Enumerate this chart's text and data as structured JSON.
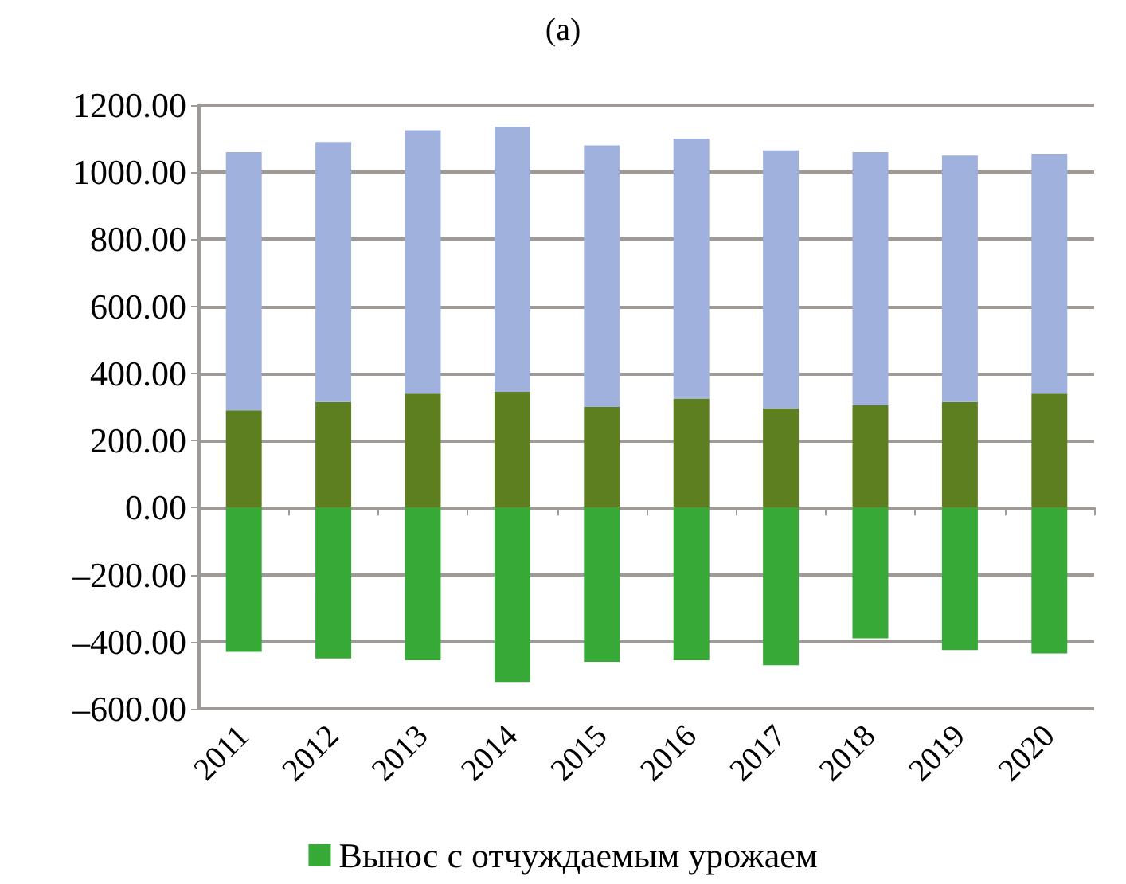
{
  "chart_data": {
    "type": "bar",
    "title": "(a)",
    "stacked": true,
    "categories": [
      "2011",
      "2012",
      "2013",
      "2014",
      "2015",
      "2016",
      "2017",
      "2018",
      "2019",
      "2020"
    ],
    "series": [
      {
        "name": "Вынос с отчуждаемым урожаем",
        "color": "#36a936",
        "values": [
          -430,
          -450,
          -455,
          -520,
          -460,
          -455,
          -470,
          -390,
          -425,
          -435
        ]
      },
      {
        "color": "#5e7f1f",
        "values": [
          290,
          315,
          340,
          345,
          300,
          325,
          295,
          305,
          315,
          340
        ]
      },
      {
        "color": "#9fb1dc",
        "values": [
          770,
          775,
          785,
          790,
          780,
          775,
          770,
          755,
          735,
          715
        ]
      }
    ],
    "ylim": [
      -600,
      1200
    ],
    "yticks": [
      {
        "value": -600,
        "label": "–600.00"
      },
      {
        "value": -400,
        "label": "–400.00"
      },
      {
        "value": -200,
        "label": "–200.00"
      },
      {
        "value": 0,
        "label": "0.00"
      },
      {
        "value": 200,
        "label": "200.00"
      },
      {
        "value": 400,
        "label": "400.00"
      },
      {
        "value": 600,
        "label": "600.00"
      },
      {
        "value": 800,
        "label": "800.00"
      },
      {
        "value": 1000,
        "label": "1000.00"
      },
      {
        "value": 1200,
        "label": "1200.00"
      }
    ],
    "grid": "y",
    "legend": "bottom"
  }
}
